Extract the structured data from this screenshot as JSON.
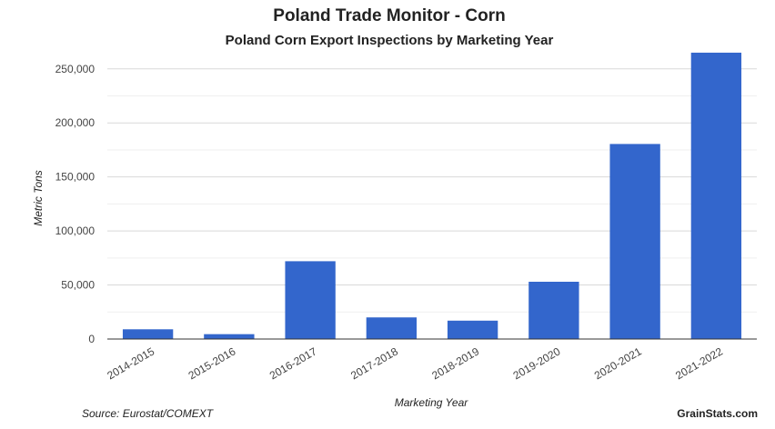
{
  "chart_data": {
    "type": "bar",
    "title": "Poland Trade Monitor - Corn",
    "subtitle": "Poland Corn Export Inspections by Marketing Year",
    "xlabel": "Marketing Year",
    "ylabel": "Metric Tons",
    "categories": [
      "2014-2015",
      "2015-2016",
      "2016-2017",
      "2017-2018",
      "2018-2019",
      "2019-2020",
      "2020-2021",
      "2021-2022"
    ],
    "values": [
      9000,
      4500,
      72000,
      20000,
      17000,
      53000,
      180500,
      265000
    ],
    "ylim": [
      0,
      270000
    ],
    "yticks": [
      0,
      50000,
      100000,
      150000,
      200000,
      250000
    ],
    "ytick_labels": [
      "0",
      "50,000",
      "100,000",
      "150,000",
      "200,000",
      "250,000"
    ],
    "bar_color": "#3366cc",
    "grid": true,
    "legend": "none"
  },
  "footer": {
    "source": "Source: Eurostat/COMEXT",
    "credit": "GrainStats.com"
  }
}
